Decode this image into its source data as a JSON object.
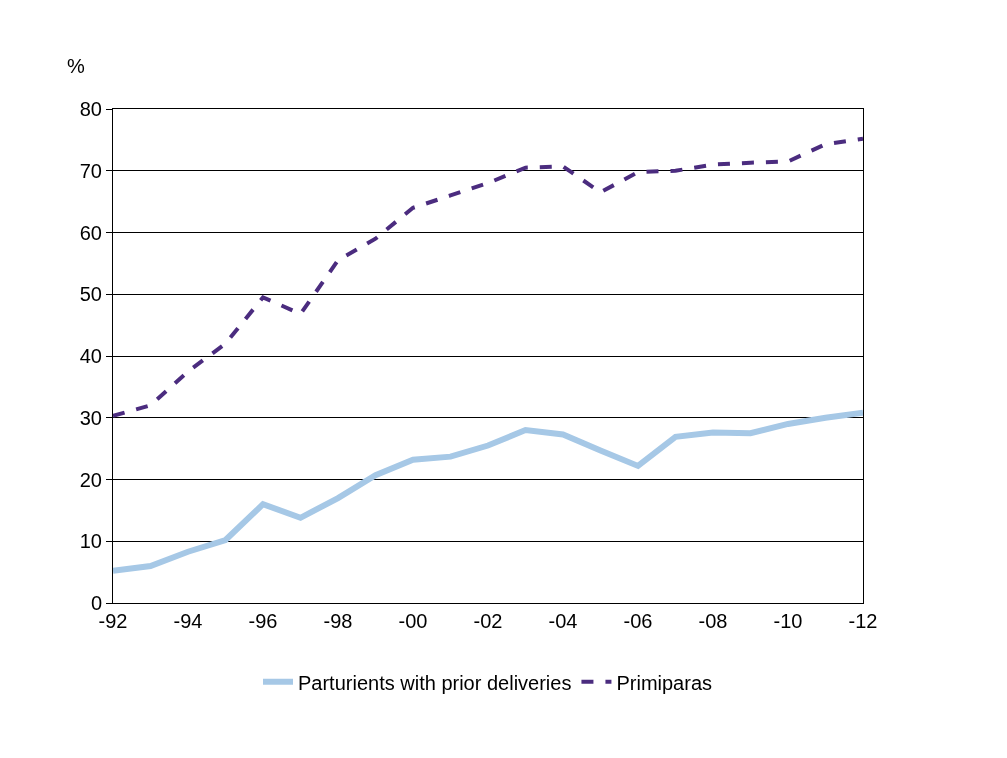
{
  "chart_data": {
    "type": "line",
    "ylabel": "%",
    "categories": [
      "-92",
      null,
      "-94",
      null,
      "-96",
      null,
      "-98",
      null,
      "-00",
      null,
      "-02",
      null,
      "-04",
      null,
      "-06",
      null,
      "-08",
      null,
      "-10",
      null,
      "-12"
    ],
    "series": [
      {
        "name": "Parturients with prior deliveries",
        "color": "#a6c8e6",
        "line_style": "solid",
        "values": [
          5.2,
          6,
          8.3,
          10.2,
          16,
          13.8,
          17,
          20.7,
          23.2,
          23.7,
          25.5,
          28,
          27.3,
          24.7,
          22.2,
          26.9,
          27.6,
          27.5,
          29,
          30,
          30.8
        ]
      },
      {
        "name": "Primiparas",
        "color": "#4b2c7f",
        "line_style": "dashed",
        "values": [
          30.3,
          32,
          37.5,
          42,
          49.5,
          46.8,
          55.5,
          59,
          64,
          66,
          68,
          70.5,
          70.7,
          66.5,
          69.8,
          70,
          71,
          71.3,
          71.5,
          74.3,
          75.2
        ]
      }
    ],
    "ylim": [
      0,
      80
    ],
    "yticks": [
      0,
      10,
      20,
      30,
      40,
      50,
      60,
      70,
      80
    ],
    "grid": "y",
    "legend": "bottom",
    "marker": "none"
  }
}
